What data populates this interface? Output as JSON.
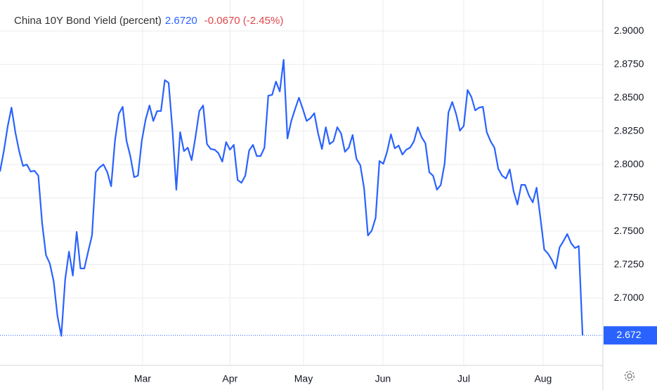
{
  "chart_data": {
    "type": "line",
    "title": "China 10Y Bond Yield (percent)",
    "last_price": "2.6720",
    "change": "-0.0670 (-2.45%)",
    "last_value_label": "2.672",
    "series": [
      {
        "name": "China 10Y Bond Yield",
        "color": "#2962ff",
        "values": [
          2.7947,
          2.81,
          2.8284,
          2.8426,
          2.8242,
          2.81,
          2.7989,
          2.8,
          2.7947,
          2.7953,
          2.7916,
          2.7558,
          2.7321,
          2.7258,
          2.7126,
          2.6863,
          2.6716,
          2.7137,
          2.7347,
          2.7168,
          2.7495,
          2.7221,
          2.7221,
          2.7347,
          2.7468,
          2.7942,
          2.7979,
          2.8,
          2.7942,
          2.7837,
          2.8179,
          2.8379,
          2.8432,
          2.8179,
          2.8063,
          2.7905,
          2.7916,
          2.8179,
          2.8337,
          2.8442,
          2.8326,
          2.84,
          2.84,
          2.8632,
          2.8611,
          2.8258,
          2.7811,
          2.8242,
          2.81,
          2.8126,
          2.8032,
          2.8205,
          2.84,
          2.8442,
          2.8153,
          2.8116,
          2.8111,
          2.8084,
          2.8021,
          2.8168,
          2.8111,
          2.8147,
          2.7884,
          2.7863,
          2.7916,
          2.8105,
          2.8147,
          2.8063,
          2.8063,
          2.8126,
          2.8516,
          2.8521,
          2.8621,
          2.8547,
          2.8784,
          2.8195,
          2.8326,
          2.8416,
          2.85,
          2.8416,
          2.8326,
          2.8347,
          2.8384,
          2.8232,
          2.8116,
          2.8279,
          2.8153,
          2.8174,
          2.8279,
          2.8232,
          2.8095,
          2.8126,
          2.8221,
          2.8042,
          2.7995,
          2.7821,
          2.7468,
          2.7505,
          2.76,
          2.8026,
          2.8005,
          2.8095,
          2.8226,
          2.8121,
          2.8142,
          2.8074,
          2.8111,
          2.8126,
          2.8174,
          2.8279,
          2.8205,
          2.8158,
          2.7942,
          2.7916,
          2.7811,
          2.7847,
          2.8005,
          2.8389,
          2.8468,
          2.8379,
          2.8253,
          2.8289,
          2.8558,
          2.8505,
          2.8405,
          2.8426,
          2.8432,
          2.8242,
          2.8174,
          2.8126,
          2.7968,
          2.7916,
          2.7895,
          2.7963,
          2.78,
          2.77,
          2.7847,
          2.7847,
          2.7768,
          2.7716,
          2.7826,
          2.76,
          2.7363,
          2.7332,
          2.7284,
          2.7221,
          2.7379,
          2.7426,
          2.7479,
          2.7411,
          2.7374,
          2.7389,
          2.672
        ]
      }
    ],
    "xlim": [
      0,
      157.3
    ],
    "xticks": [
      {
        "value": 37.2,
        "label": "Mar"
      },
      {
        "value": 60,
        "label": "Apr"
      },
      {
        "value": 79.2,
        "label": "May"
      },
      {
        "value": 99.9,
        "label": "Jun"
      },
      {
        "value": 121,
        "label": "Jul"
      },
      {
        "value": 141.7,
        "label": "Aug"
      }
    ],
    "ylim": [
      2.6495,
      2.9232
    ],
    "yticks": [
      {
        "value": 2.7,
        "label": "2.7000"
      },
      {
        "value": 2.725,
        "label": "2.7250"
      },
      {
        "value": 2.75,
        "label": "2.7500"
      },
      {
        "value": 2.775,
        "label": "2.7750"
      },
      {
        "value": 2.8,
        "label": "2.8000"
      },
      {
        "value": 2.825,
        "label": "2.8250"
      },
      {
        "value": 2.85,
        "label": "2.8500"
      },
      {
        "value": 2.875,
        "label": "2.8750"
      },
      {
        "value": 2.9,
        "label": "2.9000"
      }
    ],
    "grid": true
  }
}
